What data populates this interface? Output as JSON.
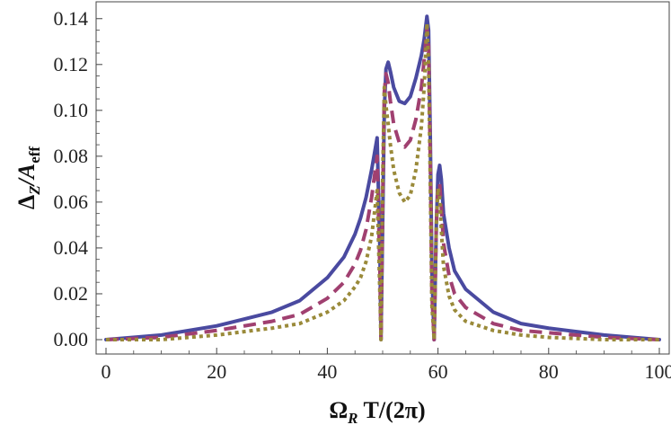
{
  "chart_data": {
    "type": "line",
    "xlabel": {
      "main": "Ω",
      "sub": "R",
      "rest": " T/(2π)"
    },
    "ylabel": {
      "main": "Δ",
      "sub1": "Z",
      "mid": "/A",
      "sub2": "eff"
    },
    "xlim": [
      0,
      100
    ],
    "ylim": [
      0,
      0.145
    ],
    "xticks": [
      0,
      20,
      40,
      60,
      80,
      100
    ],
    "xtick_labels": [
      "0",
      "20",
      "40",
      "60",
      "80",
      "100"
    ],
    "yticks": [
      0,
      0.02,
      0.04,
      0.06,
      0.08,
      0.1,
      0.12,
      0.14
    ],
    "ytick_labels": [
      "0.00",
      "0.02",
      "0.04",
      "0.06",
      "0.08",
      "0.10",
      "0.12",
      "0.14"
    ],
    "grid": false,
    "series": [
      {
        "style": "solid",
        "color": "#4a4aa0",
        "x": [
          0,
          10,
          20,
          30,
          35,
          40,
          43,
          45,
          46,
          47,
          48,
          49.0,
          49.5,
          49.7,
          50.0,
          50.3,
          50.6,
          51.0,
          51.4,
          52.0,
          53.0,
          54.0,
          55.0,
          56.0,
          57.0,
          57.5,
          58.0,
          58.3,
          58.6,
          58.9,
          59.3,
          59.7,
          60.0,
          60.3,
          60.6,
          61,
          62,
          63,
          65,
          70,
          75,
          80,
          90,
          100
        ],
        "y": [
          0.0,
          0.002,
          0.006,
          0.012,
          0.017,
          0.027,
          0.036,
          0.046,
          0.053,
          0.062,
          0.074,
          0.088,
          0.04,
          0.0,
          0.05,
          0.1,
          0.118,
          0.121,
          0.117,
          0.11,
          0.104,
          0.103,
          0.106,
          0.114,
          0.124,
          0.131,
          0.141,
          0.135,
          0.09,
          0.03,
          0.0,
          0.05,
          0.072,
          0.076,
          0.07,
          0.055,
          0.04,
          0.03,
          0.022,
          0.012,
          0.007,
          0.005,
          0.002,
          0.0
        ]
      },
      {
        "style": "dashed",
        "color": "#a04070",
        "x": [
          0,
          10,
          20,
          30,
          35,
          40,
          43,
          45,
          46,
          47,
          48,
          49.0,
          49.5,
          49.7,
          50.0,
          50.3,
          50.6,
          51.0,
          51.4,
          52.0,
          53.0,
          54.0,
          55.0,
          56.0,
          57.0,
          57.5,
          58.0,
          58.3,
          58.6,
          58.9,
          59.3,
          59.7,
          60.0,
          60.3,
          60.6,
          61,
          62,
          63,
          65,
          70,
          75,
          80,
          90,
          100
        ],
        "y": [
          0.0,
          0.001,
          0.004,
          0.008,
          0.011,
          0.018,
          0.025,
          0.033,
          0.039,
          0.048,
          0.062,
          0.08,
          0.03,
          0.0,
          0.06,
          0.108,
          0.116,
          0.112,
          0.104,
          0.094,
          0.086,
          0.084,
          0.087,
          0.096,
          0.11,
          0.122,
          0.136,
          0.128,
          0.08,
          0.02,
          0.0,
          0.05,
          0.068,
          0.068,
          0.058,
          0.042,
          0.028,
          0.02,
          0.014,
          0.007,
          0.004,
          0.003,
          0.001,
          0.0
        ]
      },
      {
        "style": "dotted",
        "color": "#9a8a3a",
        "x": [
          0,
          10,
          20,
          30,
          35,
          40,
          43,
          45,
          46,
          47,
          48,
          49.0,
          49.5,
          49.7,
          50.0,
          50.3,
          50.6,
          51.0,
          51.4,
          52.0,
          53.0,
          54.0,
          55.0,
          56.0,
          57.0,
          57.5,
          58.0,
          58.3,
          58.6,
          58.9,
          59.3,
          59.7,
          60.0,
          60.3,
          60.6,
          61,
          62,
          63,
          65,
          70,
          75,
          80,
          90,
          100
        ],
        "y": [
          0.0,
          0.0,
          0.002,
          0.005,
          0.007,
          0.012,
          0.017,
          0.023,
          0.027,
          0.034,
          0.045,
          0.065,
          0.02,
          0.0,
          0.07,
          0.11,
          0.102,
          0.094,
          0.085,
          0.074,
          0.064,
          0.06,
          0.063,
          0.074,
          0.093,
          0.11,
          0.138,
          0.12,
          0.07,
          0.015,
          0.0,
          0.05,
          0.066,
          0.062,
          0.048,
          0.032,
          0.019,
          0.013,
          0.008,
          0.004,
          0.002,
          0.001,
          0.0,
          0.0
        ]
      }
    ]
  }
}
